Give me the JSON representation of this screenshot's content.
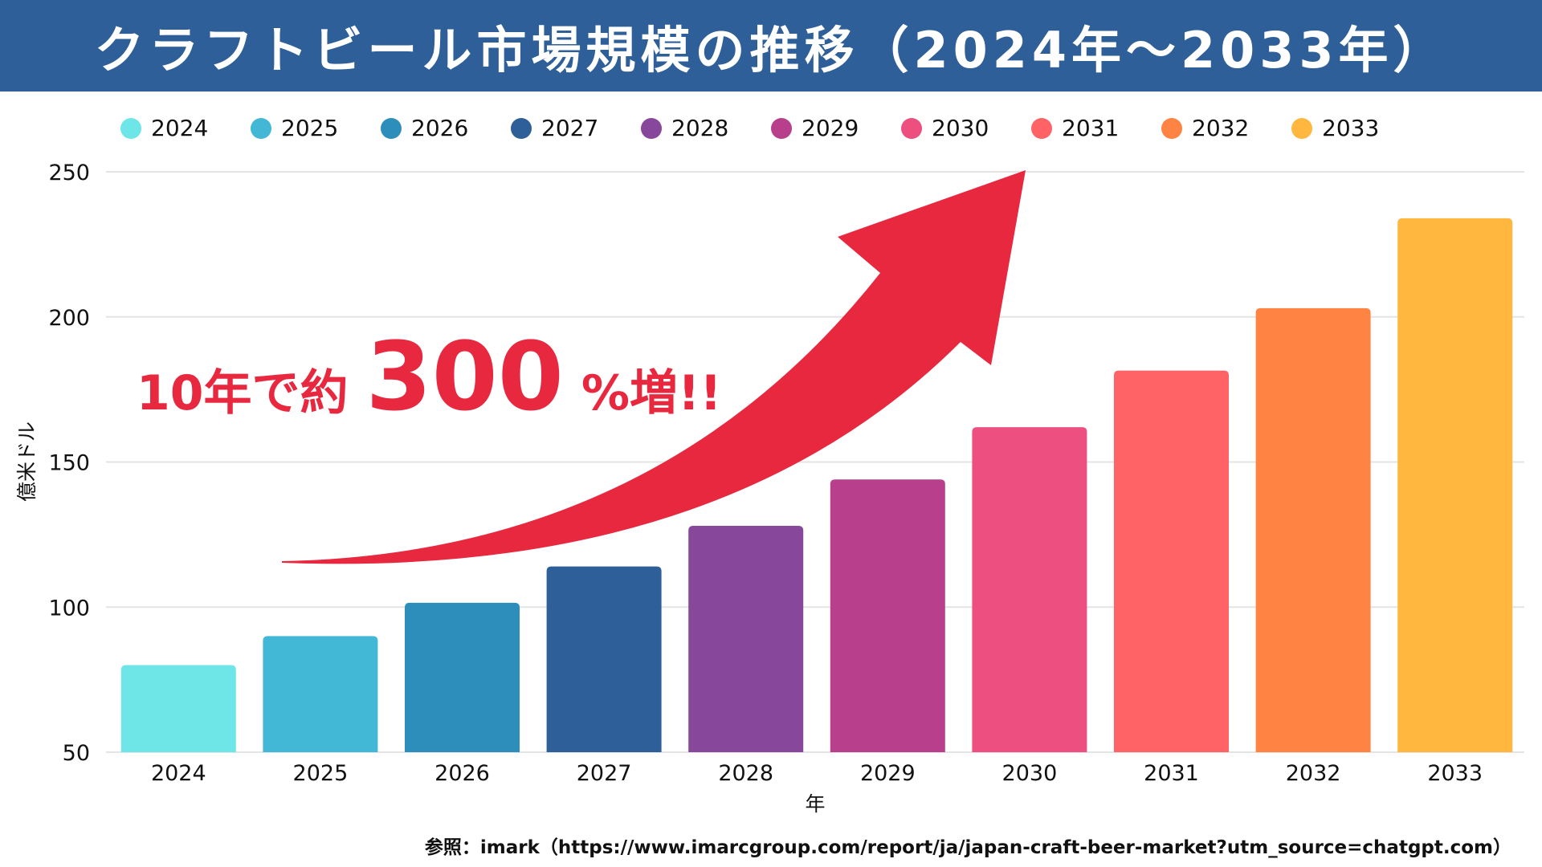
{
  "title": "クラフトビール市場規模の推移（2024年～2033年）",
  "callout": {
    "prefix": "10年で約",
    "number": "300",
    "suffix": "%増!!"
  },
  "source": "参照：imark（https://www.imarcgroup.com/report/ja/japan-craft-beer-market?utm_source=chatgpt.com）",
  "colors": {
    "header": "#2e5f98",
    "arrow": "#e8283f"
  },
  "chart_data": {
    "type": "bar",
    "title": "クラフトビール市場規模の推移（2024年～2033年）",
    "xlabel": "年",
    "ylabel": "億米ドル",
    "ylim": [
      50,
      250
    ],
    "yticks": [
      "50",
      "100",
      "150",
      "200",
      "250"
    ],
    "grid": true,
    "legend": "top",
    "categories": [
      "2024",
      "2025",
      "2026",
      "2027",
      "2028",
      "2029",
      "2030",
      "2031",
      "2032",
      "2033"
    ],
    "values": [
      80,
      90,
      101.5,
      114,
      128,
      144,
      162,
      181.5,
      203,
      234
    ],
    "bar_colors": [
      "#6ee6e8",
      "#43b8d6",
      "#2d8dbb",
      "#2e5f98",
      "#87479a",
      "#b83f8c",
      "#ec4f80",
      "#ff6366",
      "#ff8443",
      "#ffb73f"
    ]
  }
}
